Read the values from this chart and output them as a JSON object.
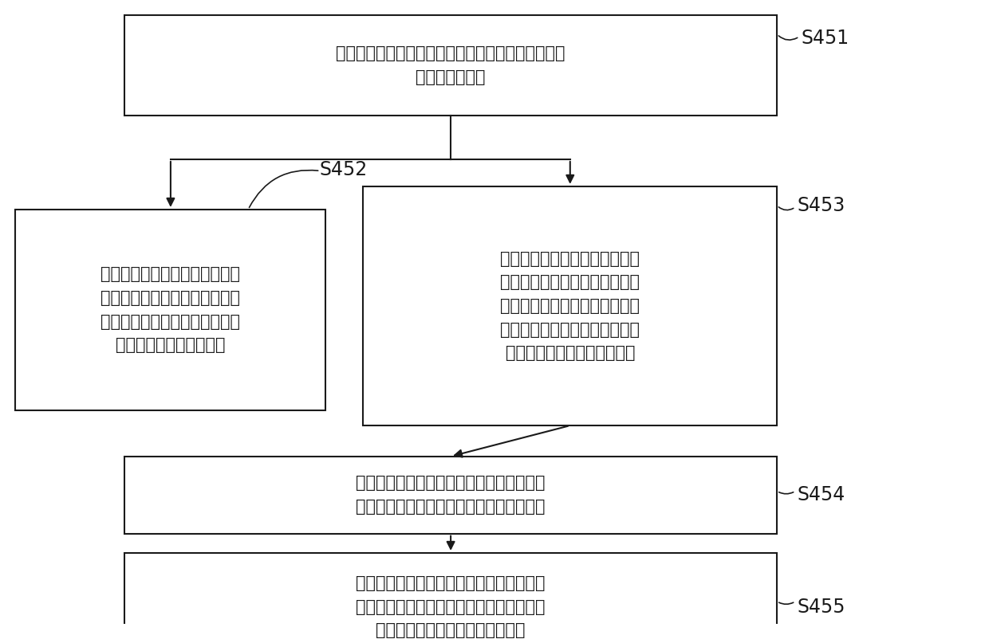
{
  "bg_color": "#ffffff",
  "box_border_color": "#1a1a1a",
  "box_fill_color": "#ffffff",
  "arrow_color": "#1a1a1a",
  "text_color": "#1a1a1a",
  "font_size": 15,
  "label_font_size": 17,
  "s451_text": "当判断所述陶瓷锅内有水时，每隔第二预设时间段读\n取电磁炉的炉温",
  "s452_text": "当相邻两次检测到的炉温的差值\n大于预设的第一温差时，判断所\n述陶瓷锅处于低温段加热干烧状\n态，控制电磁炉停止加热",
  "s453_text": "当相邻两次检测到的炉温的差值\n小于预设的第二温差时，判断所\n述陶瓷锅内的水处于沸腾状态，\n同时判断电磁炉的当前炉温是否\n大于预设的第一绝对阈值炉温",
  "s454_text": "当电磁炉的当前炉温大于第一绝对阈值炉温\n时，每隔第三预设时间段读取电磁炉的炉温",
  "s455_text": "当相邻两次检测到的炉温的差值大于预设的\n第三温差时，判断所述陶瓷锅处于高温段加\n热干烧状态，控制电磁炉停止加热",
  "s451_label": "S451",
  "s452_label": "S452",
  "s453_label": "S453",
  "s454_label": "S454",
  "s455_label": "S455"
}
